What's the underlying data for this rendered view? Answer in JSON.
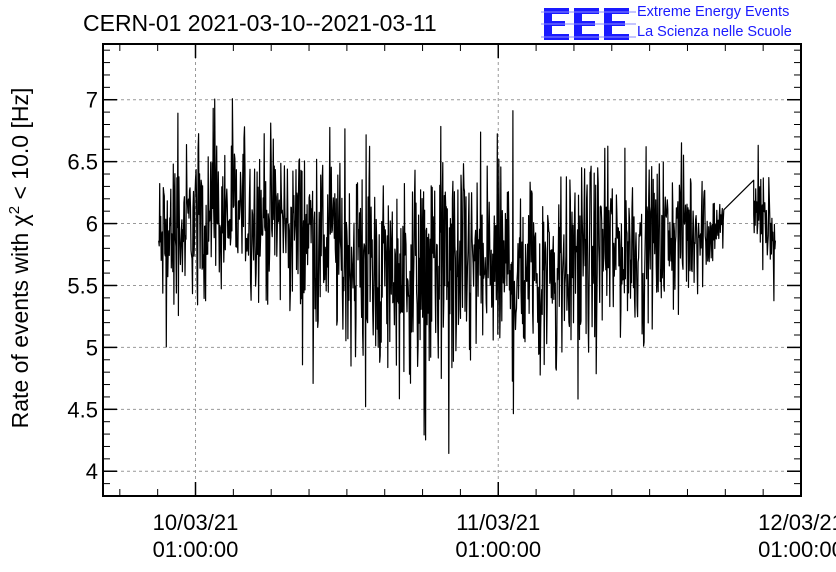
{
  "header": {
    "title": "CERN-01 2021-03-10--2021-03-11",
    "brand_logo_text": "EEE",
    "brand_line1": "Extreme Energy Events",
    "brand_line2": "La Scienza nelle Scuole",
    "brand_color": "#1a1aff"
  },
  "chart_data": {
    "type": "line",
    "title": "CERN-01 2021-03-10--2021-03-11",
    "ylabel": "Rate of events with χ² < 10.0 [Hz]",
    "ylabel_parts": {
      "pre": "Rate of events with χ",
      "sup": "2",
      "post": " < 10.0 [Hz]"
    },
    "xlabel": "",
    "ylim": [
      3.8,
      7.45
    ],
    "yticks": [
      4,
      4.5,
      5,
      5.5,
      6,
      6.5,
      7
    ],
    "ytick_labels": [
      "4",
      "4.5",
      "5",
      "5.5",
      "6",
      "6.5",
      "7"
    ],
    "xlim": [
      "2021-03-09 17:40",
      "2021-03-12 01:00"
    ],
    "xticks": [
      {
        "date": "10/03/21",
        "time": "01:00:00",
        "x": "2021-03-10 01:00"
      },
      {
        "date": "11/03/21",
        "time": "01:00:00",
        "x": "2021-03-11 01:00"
      },
      {
        "date": "12/03/21",
        "time": "01:00:00",
        "x": "2021-03-12 01:00"
      }
    ],
    "grid": true,
    "line_color": "#000000",
    "series": [
      {
        "x": [
          "2021-03-09 22:05",
          "2021-03-10 01:00",
          "2021-03-10 06:00",
          "2021-03-10 11:00",
          "2021-03-10 16:00",
          "2021-03-10 21:00",
          "2021-03-11 01:00",
          "2021-03-11 06:00",
          "2021-03-11 11:00",
          "2021-03-11 16:00",
          "2021-03-11 18:55",
          "2021-03-11 21:15",
          "2021-03-11 23:00"
        ],
        "mean": [
          5.8,
          6.0,
          6.1,
          5.95,
          5.6,
          5.7,
          5.6,
          5.75,
          5.8,
          5.95,
          6.0,
          6.15,
          5.9
        ],
        "min": [
          4.9,
          5.2,
          5.1,
          4.5,
          4.4,
          4.1,
          4.5,
          4.2,
          4.8,
          5.0,
          5.6,
          5.7,
          5.1
        ],
        "max": [
          6.8,
          7.05,
          7.0,
          6.8,
          6.8,
          6.8,
          7.0,
          6.8,
          6.8,
          6.8,
          6.25,
          6.8,
          6.2
        ]
      }
    ]
  }
}
